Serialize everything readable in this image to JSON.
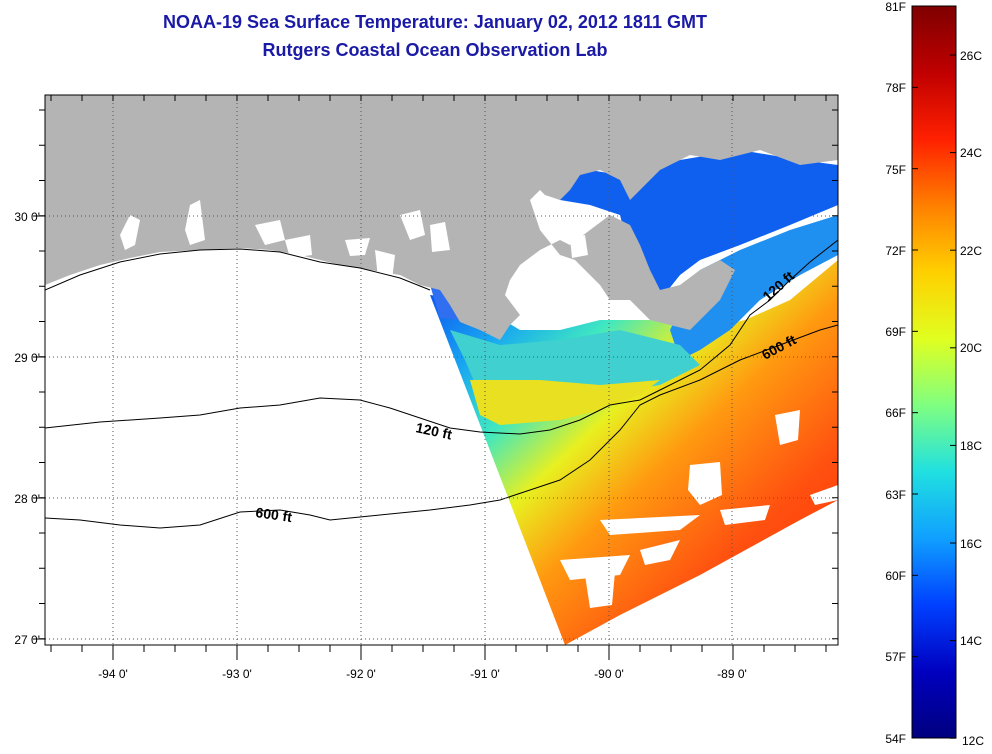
{
  "title_line1": "NOAA-19 Sea Surface Temperature:  January 02, 2012 1811 GMT",
  "title_line2": "Rutgers Coastal Ocean Observation Lab",
  "map": {
    "lon_labels": [
      "-94 0'",
      "-93 0'",
      "-92 0'",
      "-91 0'",
      "-90 0'",
      "-89 0'"
    ],
    "lat_labels": [
      "30 0'",
      "29 0'",
      "28 0'",
      "27 0'"
    ],
    "contour_labels": [
      {
        "id": "c120w",
        "text": "120 ft"
      },
      {
        "id": "c600w",
        "text": "600 ft"
      },
      {
        "id": "c120e",
        "text": "120 ft"
      },
      {
        "id": "c600e",
        "text": "600 ft"
      }
    ],
    "colors": {
      "land": "#b4b4b4",
      "no_data": "#ffffff",
      "grid": "#333333"
    }
  },
  "colorbar": {
    "fahrenheit": [
      "81F",
      "78F",
      "75F",
      "72F",
      "69F",
      "66F",
      "63F",
      "60F",
      "57F",
      "54F"
    ],
    "celsius": [
      "26C",
      "24C",
      "22C",
      "20C",
      "18C",
      "16C",
      "14C",
      "12C"
    ],
    "stops": [
      "#7f0000",
      "#c00000",
      "#ff2000",
      "#ff8000",
      "#ffd000",
      "#e0ff20",
      "#80ff80",
      "#20e0e0",
      "#10a0ff",
      "#0040ff",
      "#0000c0",
      "#00007f"
    ]
  }
}
